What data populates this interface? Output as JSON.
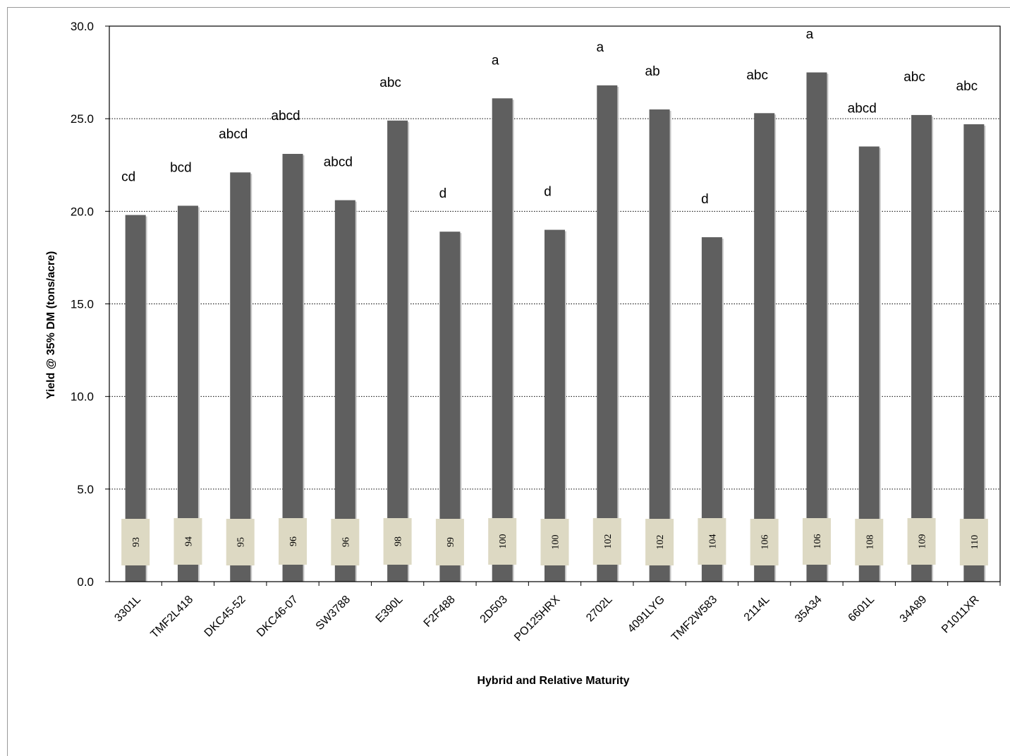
{
  "chart_data": {
    "type": "bar",
    "xlabel": "Hybrid and Relative Maturity",
    "ylabel": "Yield @ 35% DM (tons/acre)",
    "ylim": [
      0,
      30
    ],
    "yticks": [
      "0.0",
      "5.0",
      "10.0",
      "15.0",
      "20.0",
      "25.0",
      "30.0"
    ],
    "grid": "horizontal dotted",
    "bar_color": "#5f5f5f",
    "label_box_color": "#ddd9c3",
    "categories": [
      "3301L",
      "TMF2L418",
      "DKC45-52",
      "DKC46-07",
      "SW3788",
      "E390L",
      "F2F488",
      "2D503",
      "PO125HRX",
      "2702L",
      "4091LYG",
      "TMF2W583",
      "2114L",
      "35A34",
      "6601L",
      "34A89",
      "P1011XR"
    ],
    "values": [
      19.8,
      20.3,
      22.1,
      23.1,
      20.6,
      24.9,
      18.9,
      26.1,
      19.0,
      26.8,
      25.5,
      18.6,
      25.3,
      27.5,
      23.5,
      25.2,
      24.7
    ],
    "relative_maturity": [
      "93",
      "94",
      "95",
      "96",
      "96",
      "98",
      "99",
      "100",
      "100",
      "102",
      "102",
      "104",
      "106",
      "106",
      "108",
      "109",
      "110"
    ],
    "significance": [
      "cd",
      "bcd",
      "abcd",
      "abcd",
      "abcd",
      "abc",
      "d",
      "a",
      "d",
      "a",
      "ab",
      "d",
      "abc",
      "a",
      "abcd",
      "abc",
      "abc"
    ]
  }
}
